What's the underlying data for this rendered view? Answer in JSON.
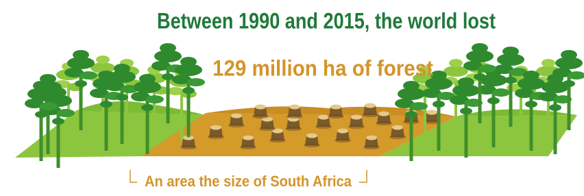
{
  "headline": "Between 1990 and 2015, the world lost",
  "highlight": "129 million ha of forest",
  "caption": "An area the size of South Africa"
}
